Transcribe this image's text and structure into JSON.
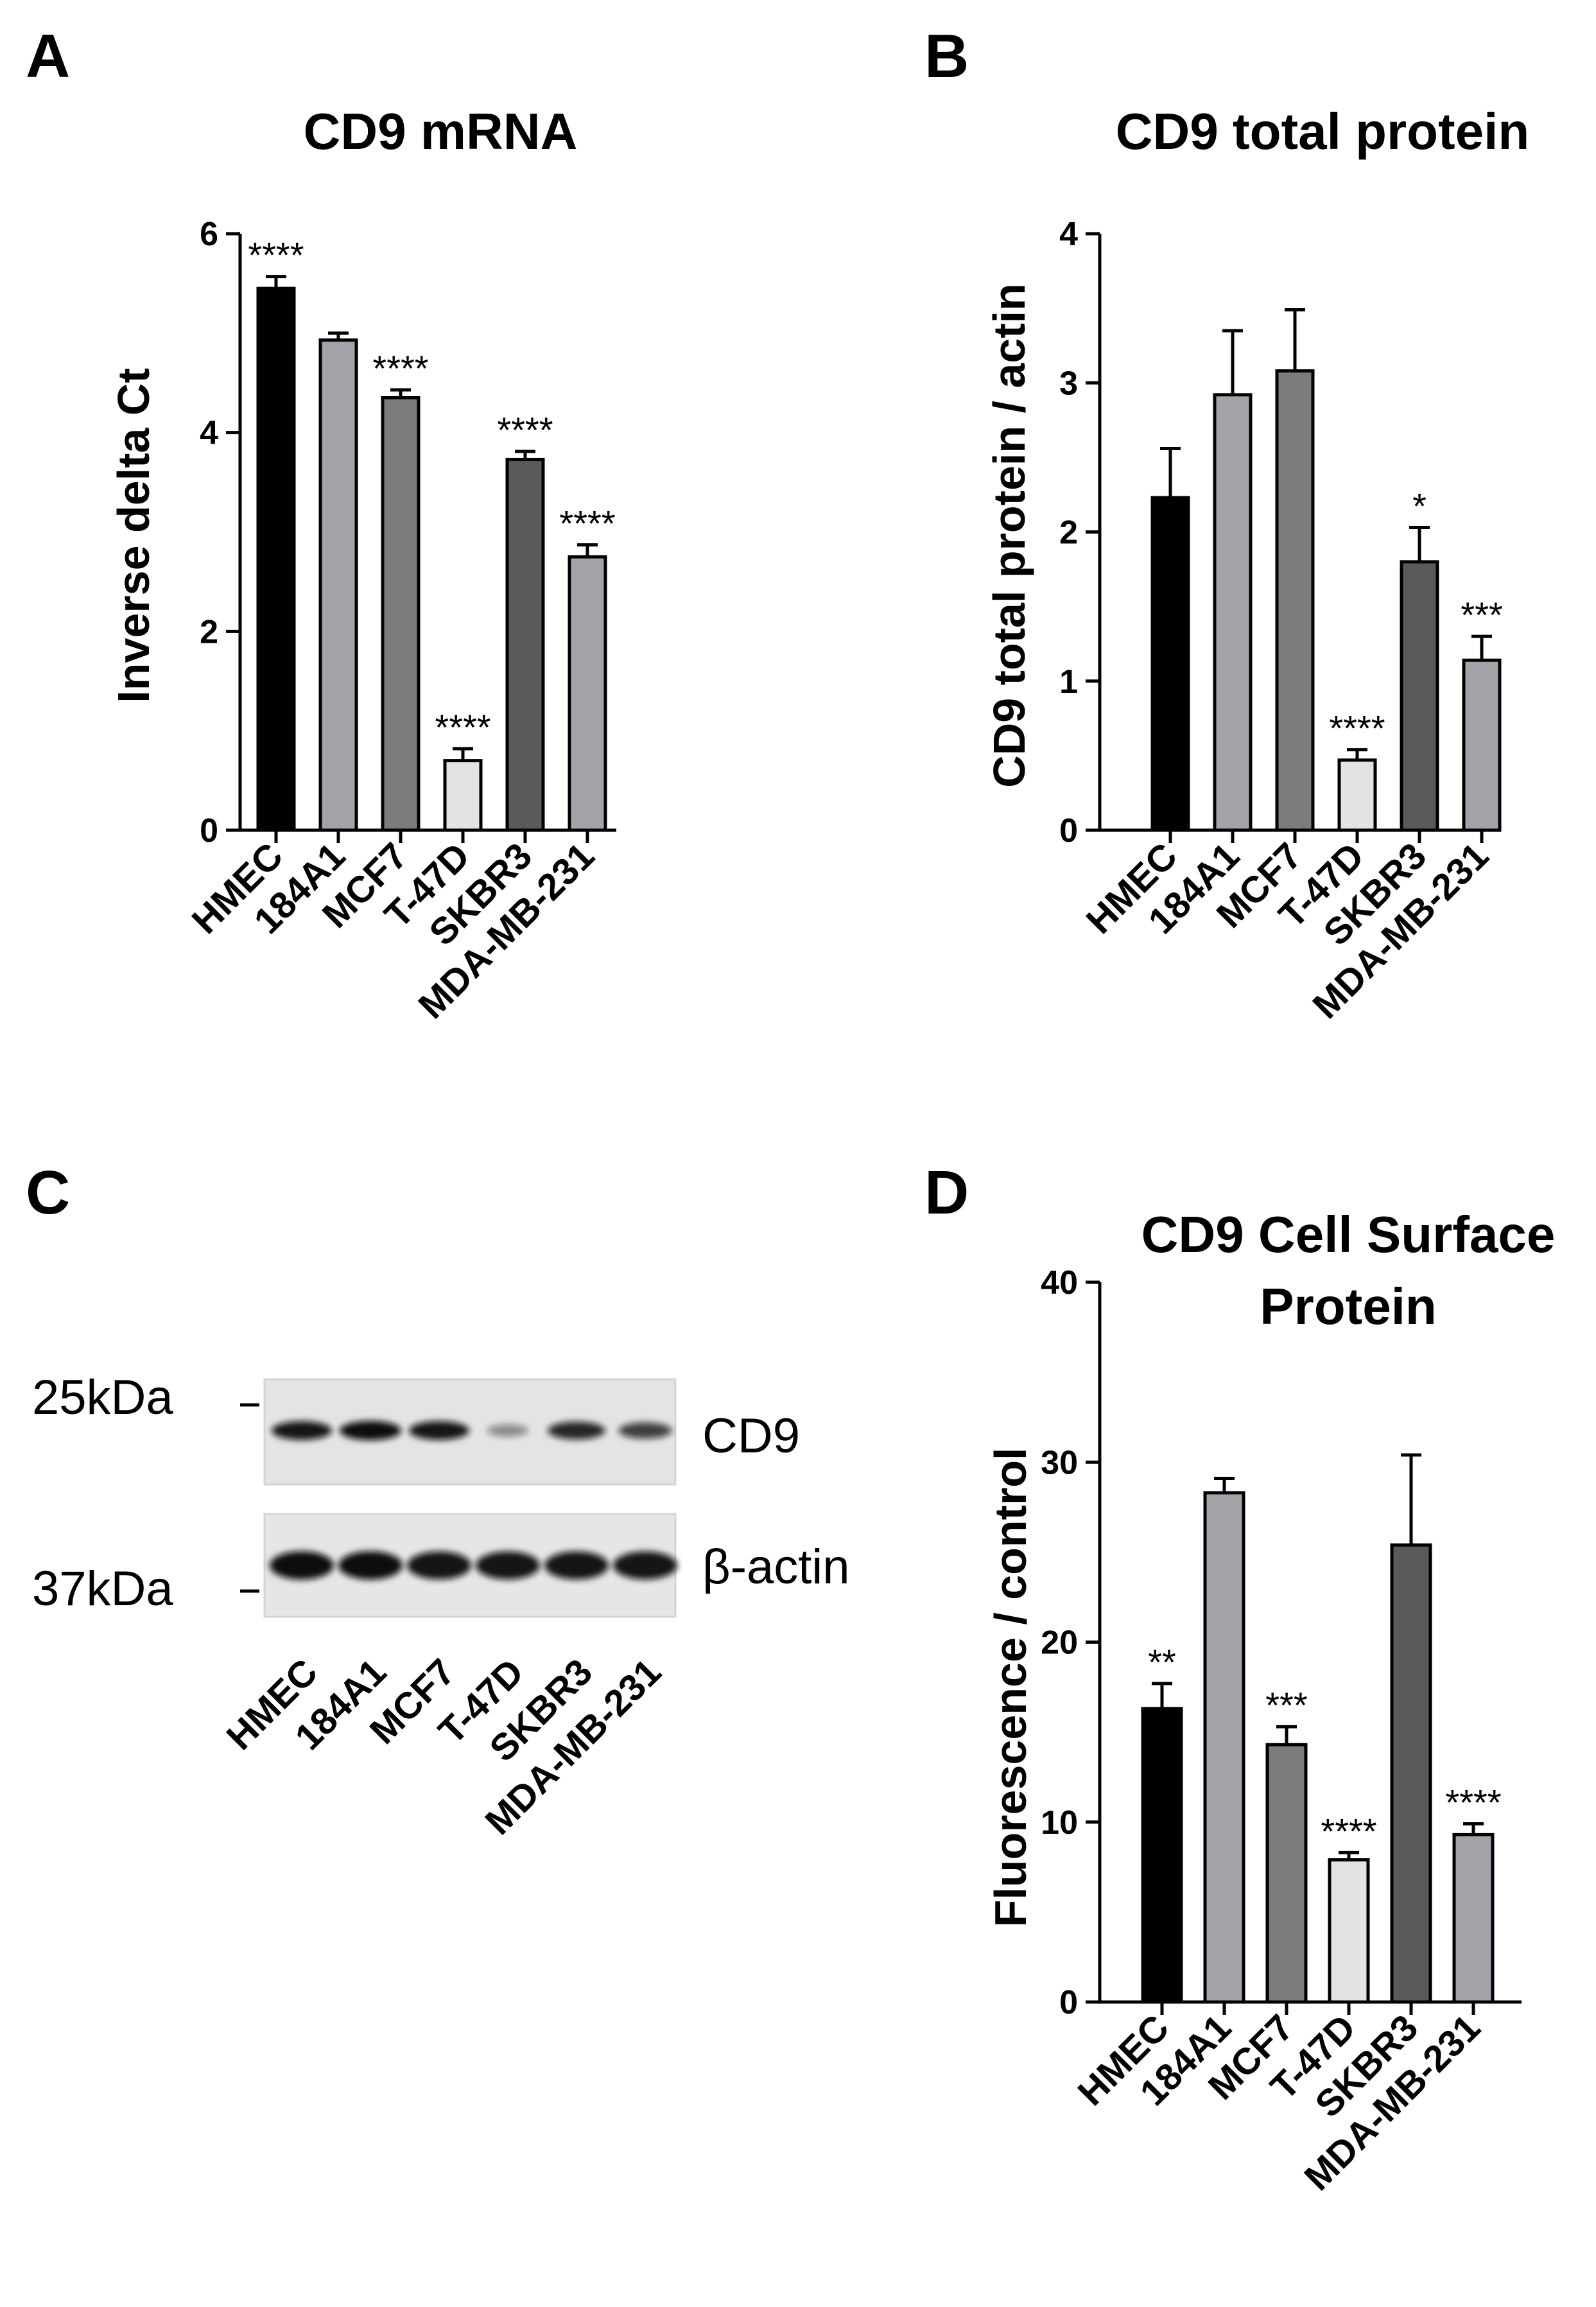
{
  "panels": {
    "A": "A",
    "B": "B",
    "C": "C",
    "D": "D"
  },
  "chart_data": [
    {
      "type": "bar",
      "title": "CD9 mRNA",
      "ylabel": "Inverse delta Ct",
      "xlabel": "",
      "ylim": [
        0,
        6
      ],
      "yticks": [
        "0",
        "2",
        "4",
        "6"
      ],
      "categories": [
        "HMEC",
        "184A1",
        "MCF7",
        "T-47D",
        "SKBR3",
        "MDA-MB-231"
      ],
      "values": [
        5.45,
        4.93,
        4.35,
        0.7,
        3.73,
        2.75
      ],
      "errors": [
        0.12,
        0.07,
        0.08,
        0.12,
        0.08,
        0.12
      ],
      "significance": [
        "****",
        "",
        "****",
        "****",
        "****",
        "****"
      ],
      "colors": [
        "#000000",
        "#a3a3aa",
        "#7c7c7c",
        "#e3e3e3",
        "#5a5a5a",
        "#a3a3aa"
      ]
    },
    {
      "type": "bar",
      "title": "CD9 total protein",
      "ylabel": "CD9 total protein / actin",
      "xlabel": "",
      "ylim": [
        0,
        4
      ],
      "yticks": [
        "0",
        "1",
        "2",
        "3",
        "4"
      ],
      "categories": [
        "HMEC",
        "184A1",
        "MCF7",
        "T-47D",
        "SKBR3",
        "MDA-MB-231"
      ],
      "values": [
        2.23,
        2.92,
        3.08,
        0.47,
        1.8,
        1.14
      ],
      "errors": [
        0.33,
        0.43,
        0.41,
        0.07,
        0.23,
        0.16
      ],
      "significance": [
        "",
        "",
        "",
        "****",
        "*",
        "***"
      ],
      "colors": [
        "#000000",
        "#a3a3aa",
        "#7c7c7c",
        "#e3e3e3",
        "#5a5a5a",
        "#a3a3aa"
      ]
    },
    {
      "type": "bar",
      "title": "CD9 Cell Surface Protein",
      "title_lines": [
        "CD9 Cell Surface",
        "Protein"
      ],
      "ylabel": "Fluorescence / control",
      "xlabel": "",
      "ylim": [
        0,
        40
      ],
      "yticks": [
        "0",
        "10",
        "20",
        "30",
        "40"
      ],
      "categories": [
        "HMEC",
        "184A1",
        "MCF7",
        "T-47D",
        "SKBR3",
        "MDA-MB-231"
      ],
      "values": [
        16.3,
        28.3,
        14.3,
        7.9,
        25.4,
        9.3
      ],
      "errors": [
        1.4,
        0.8,
        1.0,
        0.4,
        5.0,
        0.6
      ],
      "significance": [
        "**",
        "",
        "***",
        "****",
        "",
        "****"
      ],
      "colors": [
        "#000000",
        "#a3a3aa",
        "#7c7c7c",
        "#e3e3e3",
        "#5a5a5a",
        "#a3a3aa"
      ]
    }
  ],
  "blot": {
    "markers": [
      "25kDa",
      "37kDa"
    ],
    "band_labels": [
      "CD9",
      "β-actin"
    ],
    "lanes": [
      "HMEC",
      "184A1",
      "MCF7",
      "T-47D",
      "SKBR3",
      "MDA-MB-231"
    ],
    "cd9_intensity": [
      0.95,
      1.0,
      0.95,
      0.25,
      0.85,
      0.7
    ],
    "actin_intensity": [
      1.0,
      1.0,
      0.95,
      0.95,
      0.95,
      0.95
    ]
  }
}
